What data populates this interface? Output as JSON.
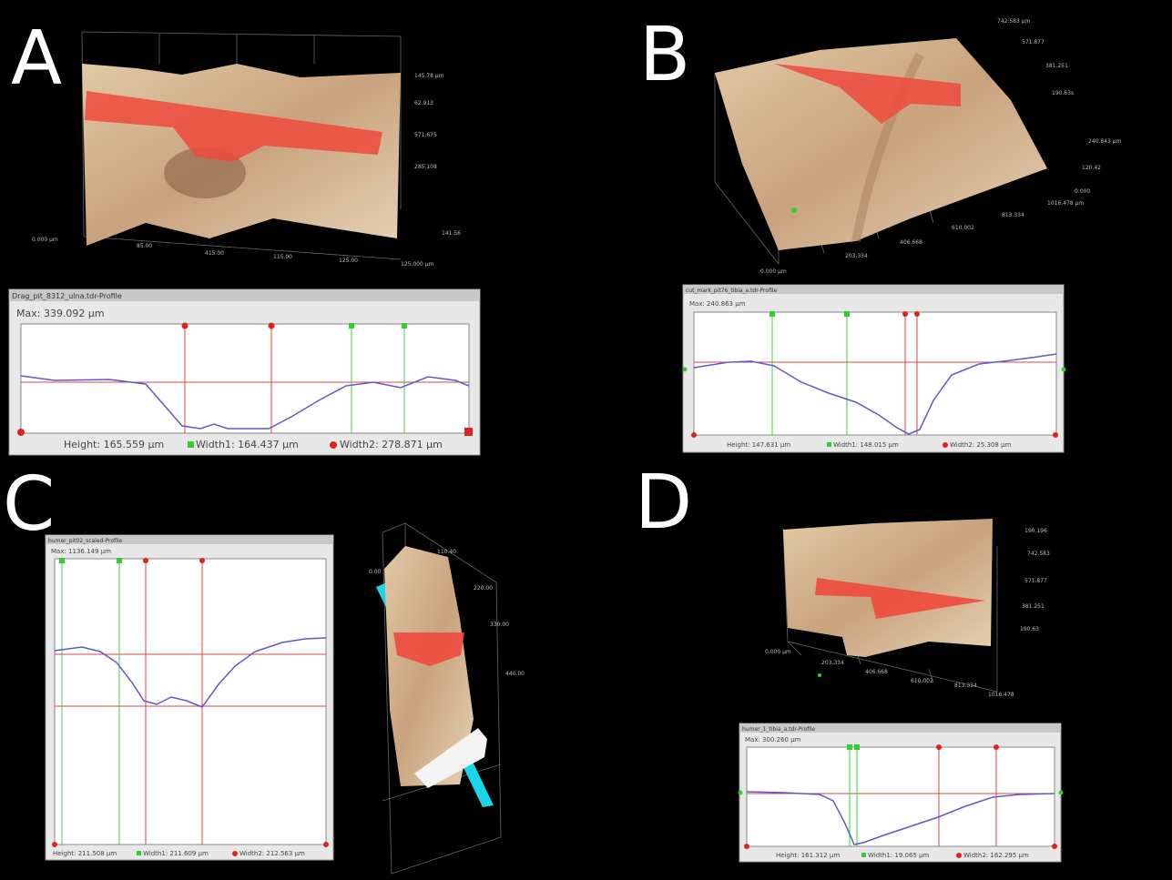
{
  "panels": [
    {
      "label": "A",
      "window_title": "Drag_pit_8312_ulna.tdr-Profile",
      "max": "Max: 339.092 µm",
      "height": "Height: 165.559 µm",
      "width1": "Width1: 164.437 µm",
      "width2": "Width2: 278.871 µm",
      "axis_labels": [
        "145.78 µm",
        "62.913",
        "571.675",
        "285.108",
        "0.000 µm",
        "85.00",
        "415.00",
        "115.00",
        "125.00",
        "141.56",
        "125.000 µm"
      ]
    },
    {
      "label": "B",
      "window_title": "cut_mark_pit76_tibia_a.tdr-Profile",
      "max": "Max: 240.863 µm",
      "height": "Height: 147.631 µm",
      "width1": "Width1: 148.015 µm",
      "width2": "Width2: 25.308 µm",
      "axis_labels": [
        "742.583 µm",
        "571.877",
        "381.251",
        "190.63s",
        "240.843 µm",
        "120.42",
        "0.000",
        "1016.478 µm",
        "813.334",
        "610.002",
        "406.668",
        "203.334",
        "0.000 µm"
      ]
    },
    {
      "label": "C",
      "window_title": "humer_pit02_scaled-Profile",
      "max": "Max: 1136.149 µm",
      "height": "Height: 211.508 µm",
      "width1": "Width1: 211.609 µm",
      "width2": "Width2: 212.563 µm",
      "axis_labels": [
        "110.40",
        "220.00",
        "330.00",
        "440.00",
        "0.00"
      ]
    },
    {
      "label": "D",
      "window_title": "humer_1_tibia_a.tdr-Profile",
      "max": "Max: 300.260 µm",
      "height": "Height: 161.312 µm",
      "width1": "Width1: 19.065 µm",
      "width2": "Width2: 162.295 µm",
      "axis_labels": [
        "190.196",
        "742.583",
        "571.877",
        "381.251",
        "190.63",
        "0.000 µm",
        "203.334",
        "406.668",
        "610.002",
        "813.334",
        "1016.478"
      ]
    }
  ]
}
